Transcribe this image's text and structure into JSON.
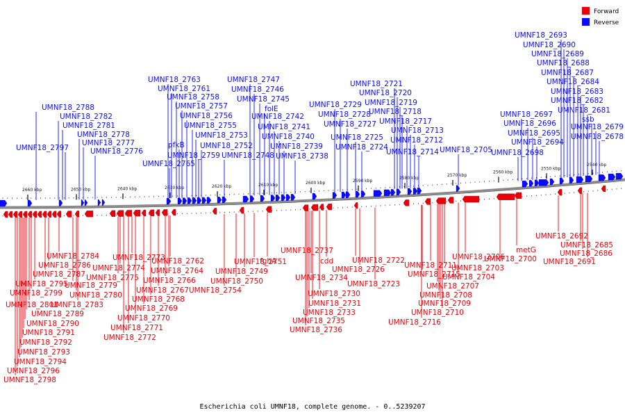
{
  "caption": "Escherichia coli UMNF18, complete genome. - 0..5239207",
  "colors": {
    "forward": "#e8000b",
    "reverse": "#0a0aff",
    "backbone": "#8a8a8a"
  },
  "legend": [
    {
      "label": "Forward",
      "color": "#e8000b"
    },
    {
      "label": "Reverse",
      "color": "#0a0aff"
    }
  ],
  "ticks": [
    "2660 kbp",
    "2650 kbp",
    "2640 kbp",
    "2630 kbp",
    "2620 kbp",
    "2610 kbp",
    "2600 kbp",
    "2590 kbp",
    "2580 kbp",
    "2570 kbp",
    "2560 kbp",
    "2550 kbp",
    "2540 kbp"
  ],
  "reverse_labels": [
    "UMNF18_2693",
    "UMNF18_2690",
    "UMNF18_2689",
    "UMNF18_2688",
    "UMNF18_2687",
    "UMNF18_2684",
    "UMNF18_2683",
    "UMNF18_2682",
    "UMNF18_2681",
    "ssb",
    "UMNF18_2679",
    "UMNF18_2678",
    "UMNF18_2697",
    "UMNF18_2696",
    "UMNF18_2695",
    "UMNF18_2694",
    "UMNF18_2698",
    "UMNF18_2705",
    "UMNF18_2721",
    "UMNF18_2720",
    "UMNF18_2719",
    "UMNF18_2718",
    "UMNF18_2717",
    "UMNF18_2713",
    "UMNF18_2712",
    "UMNF18_2714",
    "UMNF18_2729",
    "UMNF18_2728",
    "UMNF18_2727",
    "UMNF18_2725",
    "UMNF18_2724",
    "UMNF18_2747",
    "UMNF18_2746",
    "UMNF18_2745",
    "folE",
    "UMNF18_2742",
    "UMNF18_2741",
    "UMNF18_2740",
    "UMNF18_2739",
    "UMNF18_2738",
    "UMNF18_2763",
    "UMNF18_2761",
    "UMNF18_2758",
    "UMNF18_2757",
    "UMNF18_2756",
    "UMNF18_2755",
    "pfkB",
    "UMNF18_2753",
    "UMNF18_2752",
    "UMNF18_2759",
    "UMNF18_2748",
    "UMNF18_2765",
    "UMNF18_2788",
    "UMNF18_2782",
    "UMNF18_2781",
    "UMNF18_2778",
    "UMNF18_2777",
    "UMNF18_2797",
    "UMNF18_2776"
  ],
  "forward_labels": [
    "UMNF18_2692",
    "UMNF18_2685",
    "UMNF18_2686",
    "UMNF18_2691",
    "metG",
    "UMNF18_2700",
    "UMNF18_2706",
    "UMNF18_2711",
    "UMNF18_2703",
    "UMNF18_2715",
    "UMNF18_2704",
    "UMNF18_2707",
    "UMNF18_2708",
    "UMNF18_2709",
    "UMNF18_2710",
    "UMNF18_2716",
    "UMNF18_2722",
    "UMNF18_2726",
    "UMNF18_2723",
    "UMNF18_2737",
    "cdd",
    "UMNF18_2734",
    "UMNF18_2730",
    "UMNF18_2731",
    "UMNF18_2733",
    "UMNF18_2735",
    "UMNF18_2736",
    "UMNF18_2751",
    "fghA",
    "UMNF18_2749",
    "UMNF18_2750",
    "UMNF18_2754",
    "UMNF18_2762",
    "UMNF18_2764",
    "UMNF18_2766",
    "UMNF18_2767",
    "UMNF18_2768",
    "UMNF18_2769",
    "UMNF18_2770",
    "UMNF18_2771",
    "UMNF18_2772",
    "UMNF18_2773",
    "UMNF18_2774",
    "UMNF18_2775",
    "UMNF18_2784",
    "UMNF18_2786",
    "UMNF18_2787",
    "UMNF18_2779",
    "UMNF18_2780",
    "UMNF18_2783",
    "UMNF18_2795",
    "UMNF18_2799",
    "UMNF18_2801",
    "UMNF18_2789",
    "UMNF18_2790",
    "UMNF18_2791",
    "UMNF18_2792",
    "UMNF18_2793",
    "UMNF18_2794",
    "UMNF18_2796",
    "UMNF18_2798"
  ]
}
